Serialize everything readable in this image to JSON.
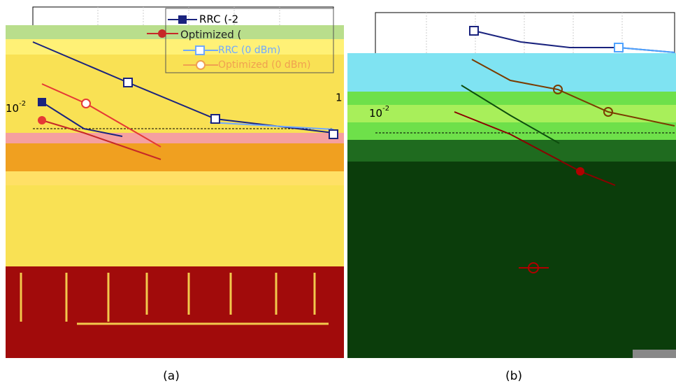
{
  "panels": [
    {
      "caption": "(a)",
      "legend": [
        "RRC (-2",
        "Optimized (",
        "RRC (0 dBm)",
        "Optimized (0 dBm)"
      ],
      "tick": {
        "base": "10",
        "exponent": "-2"
      },
      "right_label": "1"
    },
    {
      "caption": "(b)",
      "tick": {
        "base": "10",
        "exponent": "-2"
      }
    }
  ]
}
